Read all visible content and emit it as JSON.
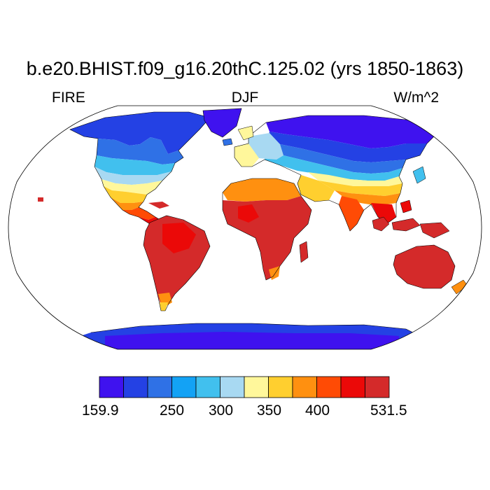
{
  "title": "b.e20.BHIST.f09_g16.20thC.125.02 (yrs 1850-1863)",
  "left_string": "FIRE",
  "center_string": "DJF",
  "right_string": "W/m^2",
  "map": {
    "projection": "robinson",
    "variable": "FIRE",
    "season": "DJF",
    "units": "W/m^2"
  },
  "colorbar": {
    "min_label": "159.9",
    "max_label": "531.5",
    "tick_labels": [
      "250",
      "300",
      "350",
      "400"
    ],
    "colors": [
      "#3f12ef",
      "#2441e4",
      "#2f71e6",
      "#13a2f5",
      "#41c0ee",
      "#a8d9f2",
      "#fff79b",
      "#ffcf2f",
      "#ff9010",
      "#ff4b05",
      "#eb0908",
      "#d42a2a"
    ]
  },
  "palette": {
    "ocean": "#ffffff",
    "outline": "#000000"
  }
}
